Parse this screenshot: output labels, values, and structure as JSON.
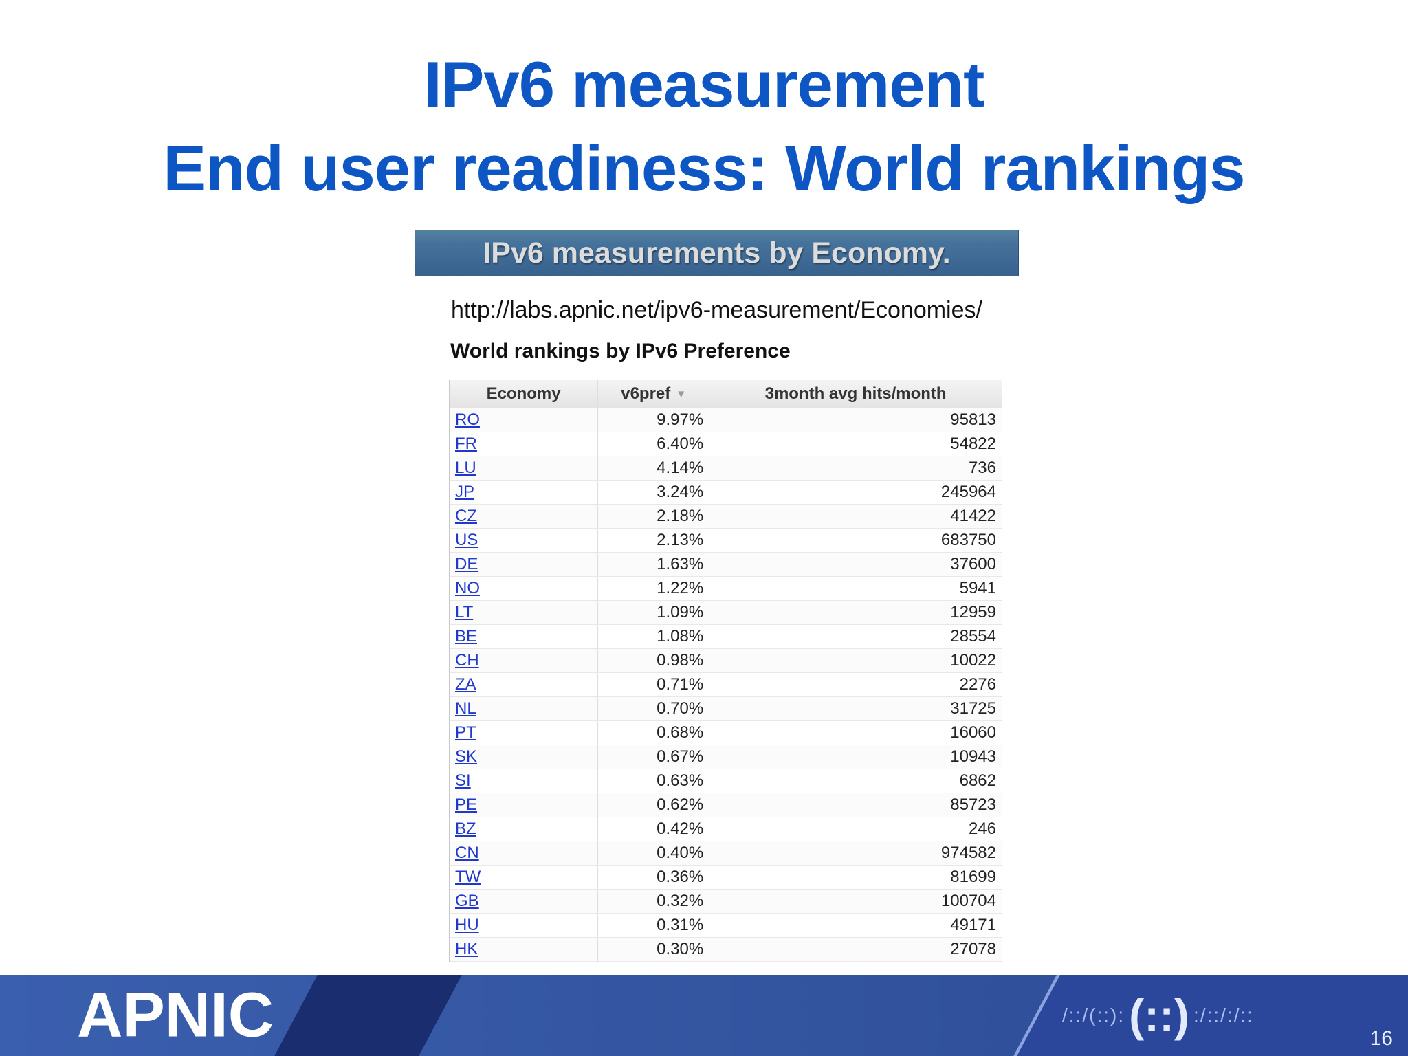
{
  "slide": {
    "title_line1": "IPv6 measurement",
    "title_line2": "End user readiness: World rankings",
    "banner_text": "IPv6 measurements by Economy.",
    "url": "http://labs.apnic.net/ipv6-measurement/Economies/",
    "table_title": "World rankings by IPv6 Preference",
    "page_number": "16"
  },
  "table": {
    "columns": [
      "Economy",
      "v6pref",
      "3month avg hits/month"
    ],
    "sort_icon": "▼",
    "sorted_column": "v6pref",
    "rows": [
      {
        "economy": "RO",
        "v6pref": "9.97%",
        "hits": "95813"
      },
      {
        "economy": "FR",
        "v6pref": "6.40%",
        "hits": "54822"
      },
      {
        "economy": "LU",
        "v6pref": "4.14%",
        "hits": "736"
      },
      {
        "economy": "JP",
        "v6pref": "3.24%",
        "hits": "245964"
      },
      {
        "economy": "CZ",
        "v6pref": "2.18%",
        "hits": "41422"
      },
      {
        "economy": "US",
        "v6pref": "2.13%",
        "hits": "683750"
      },
      {
        "economy": "DE",
        "v6pref": "1.63%",
        "hits": "37600"
      },
      {
        "economy": "NO",
        "v6pref": "1.22%",
        "hits": "5941"
      },
      {
        "economy": "LT",
        "v6pref": "1.09%",
        "hits": "12959"
      },
      {
        "economy": "BE",
        "v6pref": "1.08%",
        "hits": "28554"
      },
      {
        "economy": "CH",
        "v6pref": "0.98%",
        "hits": "10022"
      },
      {
        "economy": "ZA",
        "v6pref": "0.71%",
        "hits": "2276"
      },
      {
        "economy": "NL",
        "v6pref": "0.70%",
        "hits": "31725"
      },
      {
        "economy": "PT",
        "v6pref": "0.68%",
        "hits": "16060"
      },
      {
        "economy": "SK",
        "v6pref": "0.67%",
        "hits": "10943"
      },
      {
        "economy": "SI",
        "v6pref": "0.63%",
        "hits": "6862"
      },
      {
        "economy": "PE",
        "v6pref": "0.62%",
        "hits": "85723"
      },
      {
        "economy": "BZ",
        "v6pref": "0.42%",
        "hits": "246"
      },
      {
        "economy": "CN",
        "v6pref": "0.40%",
        "hits": "974582"
      },
      {
        "economy": "TW",
        "v6pref": "0.36%",
        "hits": "81699"
      },
      {
        "economy": "GB",
        "v6pref": "0.32%",
        "hits": "100704"
      },
      {
        "economy": "HU",
        "v6pref": "0.31%",
        "hits": "49171"
      },
      {
        "economy": "HK",
        "v6pref": "0.30%",
        "hits": "27078"
      }
    ]
  },
  "footer": {
    "logo_text": "APNIC",
    "pattern_left": "/::/(::):",
    "pattern_center": "(::)",
    "pattern_right": ":/::/:/::"
  },
  "colors": {
    "title_blue": "#0d56c3",
    "link_blue": "#2138cc",
    "banner_blue": "#45729b",
    "footer_blue": "#33549f",
    "footer_dark_blue": "#18296a",
    "table_header_gray": "#e4e4e4"
  }
}
